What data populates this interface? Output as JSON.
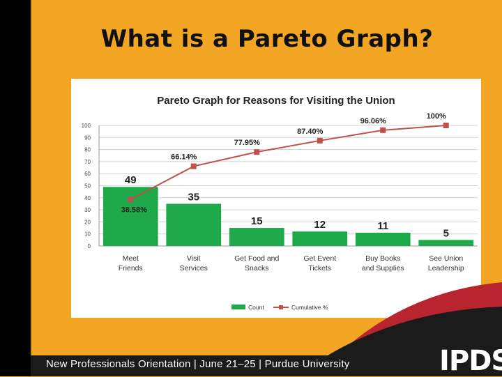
{
  "slide": {
    "title": "What is a Pareto Graph?",
    "footer": "New Professionals Orientation | June 21–25 | Purdue University",
    "logo_text": "IPDS"
  },
  "colors": {
    "background": "#F2A623",
    "bar": "#1EAA4B",
    "line": "#C0504D",
    "footer_band": "#1B1B1B",
    "accent_red": "#B8252E"
  },
  "chart_data": {
    "type": "bar",
    "title": "Pareto Graph for Reasons for Visiting the Union",
    "categories": [
      [
        "Meet",
        "Friends"
      ],
      [
        "Visit",
        "Services"
      ],
      [
        "Get Food and",
        "Snacks"
      ],
      [
        "Get Event",
        "Tickets"
      ],
      [
        "Buy Books",
        "and Supplies"
      ],
      [
        "See Union",
        "Leadership"
      ]
    ],
    "series": [
      {
        "name": "Count",
        "type": "bar",
        "values": [
          49,
          35,
          15,
          12,
          11,
          5
        ],
        "labels": [
          "49",
          "35",
          "15",
          "12",
          "11",
          "5"
        ]
      },
      {
        "name": "Cumulative %",
        "type": "line",
        "values": [
          38.58,
          66.14,
          77.95,
          87.4,
          96.06,
          100
        ],
        "labels": [
          "38.58%",
          "66.14%",
          "77.95%",
          "87.40%",
          "96.06%",
          "100%"
        ]
      }
    ],
    "ylim": [
      0,
      100
    ],
    "yticks": [
      "0",
      "10",
      "20",
      "30",
      "40",
      "50",
      "60",
      "70",
      "80",
      "90",
      "100"
    ],
    "grid": true,
    "legend": "bottom"
  }
}
